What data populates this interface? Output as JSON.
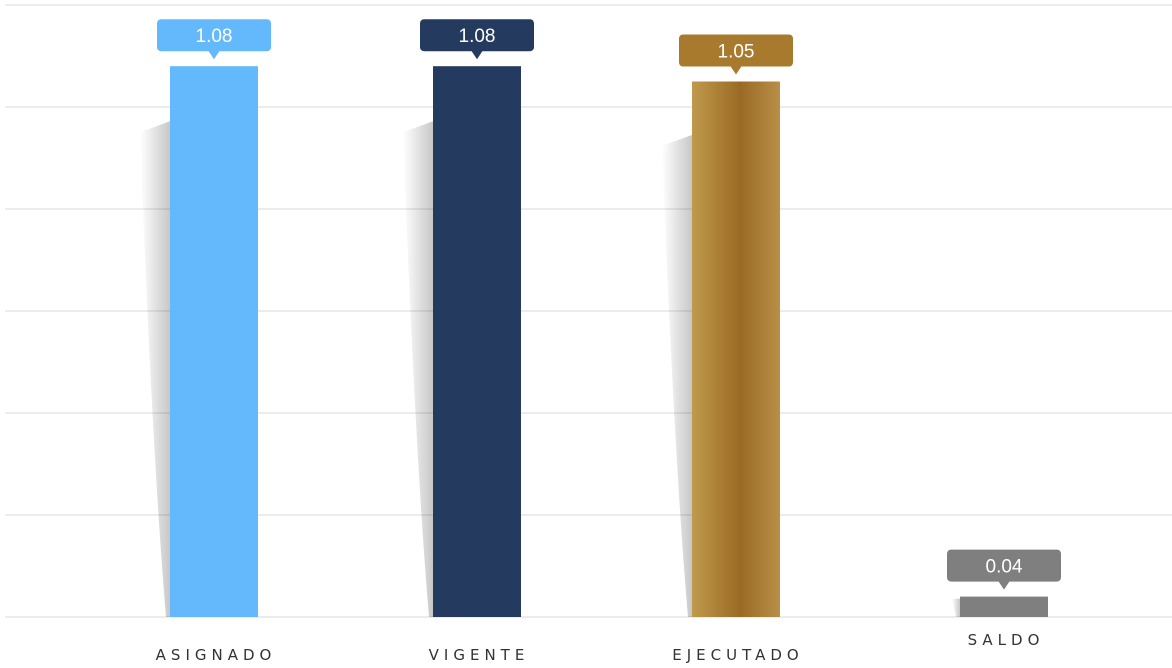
{
  "chart_data": {
    "type": "bar",
    "categories": [
      "ASIGNADO",
      "VIGENTE",
      "EJECUTADO",
      "SALDO"
    ],
    "values": [
      1.08,
      1.08,
      1.05,
      0.04
    ],
    "value_labels": [
      "1.08",
      "1.08",
      "1.05",
      "0.04"
    ],
    "colors": [
      "#63b9fc",
      "#243a5e",
      "#a87a2e",
      "#7f7f7f"
    ],
    "title": "",
    "xlabel": "",
    "ylabel": "",
    "ylim": [
      0,
      1.2
    ],
    "grid": true,
    "legend": "none"
  }
}
